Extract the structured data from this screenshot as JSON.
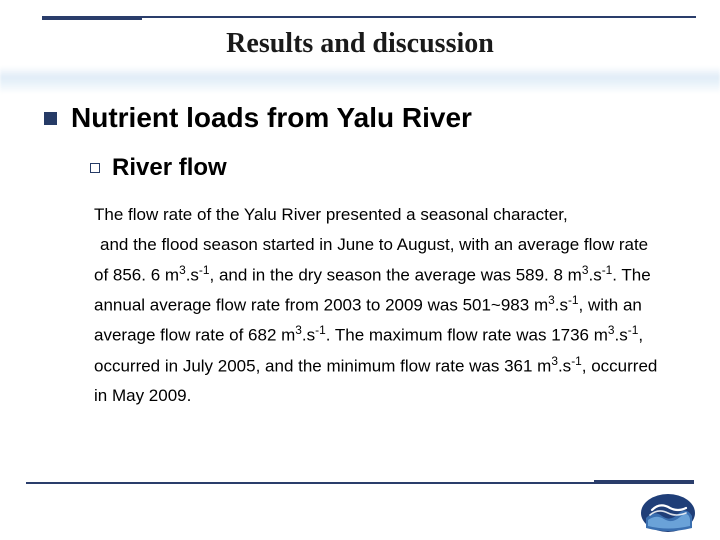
{
  "title": "Results and discussion",
  "heading1": "Nutrient loads from Yalu River",
  "heading2": "River flow",
  "paragraph_line1": "The flow rate of the Yalu River presented a seasonal character,",
  "paragraph_rest_html": "and the flood season started in June to August, with an average flow rate of 856. 6 m<sup>3</sup>.s<sup>-1</sup>, and in the dry season the average was 589. 8 m<sup>3</sup>.s<sup>-1</sup>. The annual average flow rate from 2003 to 2009 was 501~983 m<sup>3</sup>.s<sup>-1</sup>, with an average flow rate of 682 m<sup>3</sup>.s<sup>-1</sup>. The maximum flow rate was 1736 m<sup>3</sup>.s<sup>-1</sup>, occurred in July 2005, and the minimum flow rate was 361 m<sup>3</sup>.s<sup>-1</sup>, occurred in May 2009.",
  "colors": {
    "rule": "#2a3d6b",
    "bullet": "#263b66",
    "logo_outer": "#1f3e78",
    "logo_mid": "#3a6fb0",
    "logo_inner": "#6aa2d8",
    "logo_white": "#ffffff"
  },
  "fonts": {
    "title_family": "Times New Roman",
    "title_size_pt": 21,
    "heading1_size_pt": 21,
    "heading2_size_pt": 18,
    "body_size_pt": 13
  }
}
